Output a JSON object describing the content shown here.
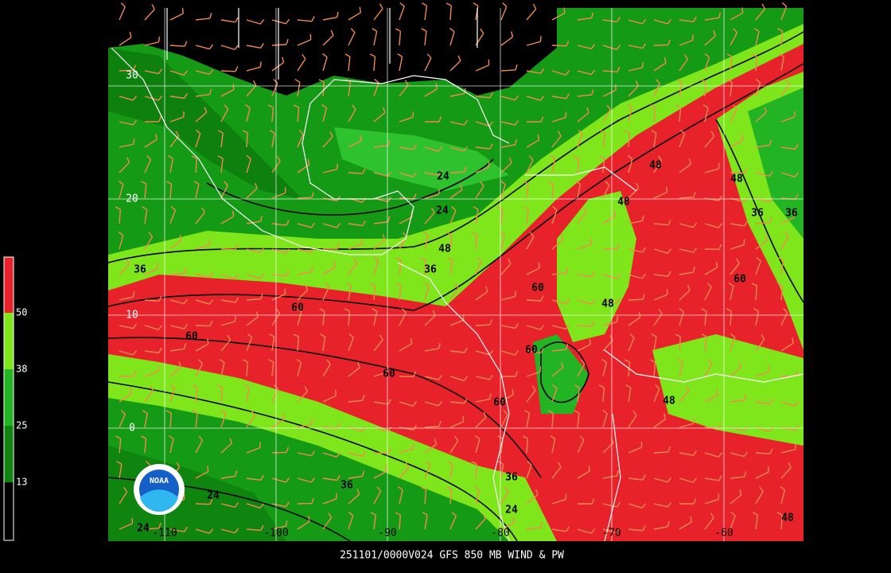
{
  "title": "251101/0000V024 GFS 850 MB WIND & PW",
  "colorbar": {
    "labels": [
      "50",
      "38",
      "25",
      "13"
    ]
  },
  "lat_labels": [
    "30",
    "20",
    "10",
    "0"
  ],
  "lon_labels": [
    "-110",
    "-100",
    "-90",
    "-80",
    "-70",
    "-60"
  ],
  "contour_labels": [
    "24",
    "24",
    "48",
    "36",
    "36",
    "60",
    "60",
    "60",
    "60",
    "60",
    "60",
    "48",
    "48",
    "48",
    "36",
    "36",
    "48",
    "60",
    "48",
    "36",
    "24",
    "24",
    "36",
    "24",
    "48"
  ],
  "logo": "NOAA"
}
